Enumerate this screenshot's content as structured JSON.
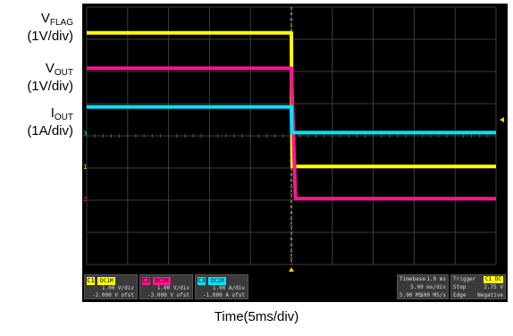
{
  "labels": [
    {
      "main": "V",
      "sub": "FLAG",
      "scale": "(1V/div)"
    },
    {
      "main": "V",
      "sub": "OUT",
      "scale": "(1V/div)"
    },
    {
      "main": "I",
      "sub": "OUT",
      "scale": "(1A/div)"
    }
  ],
  "x_axis_label": "Time(5ms/div)",
  "scope": {
    "channels": [
      {
        "num": "C1",
        "tag": "DC1M",
        "line1": "1.00 V/div",
        "line2": "-2.000 V ofst",
        "color": "#ffff00"
      },
      {
        "num": "C2",
        "tag": "DC1M",
        "line1": "1.00 V/div",
        "line2": "-3.000 V ofst",
        "color": "#ff1493"
      },
      {
        "num": "C3",
        "tag": "DC1M",
        "line1": "1.00 A/div",
        "line2": "-1.000 A ofst",
        "color": "#00e5ff"
      }
    ],
    "timebase": {
      "label": "Timebase",
      "delay": "-1.0 ms",
      "rate": "5.00 ms/div",
      "samples": "5.00 MS",
      "sample_rate": "100 MS/s"
    },
    "trigger": {
      "label": "Trigger",
      "source": "C1 DC",
      "mode": "Stop",
      "level": "2.75 V",
      "type": "Edge",
      "slope": "Negative"
    }
  },
  "chart_data": {
    "type": "line",
    "title": "",
    "xlabel": "Time(5ms/div)",
    "x_unit": "ms",
    "x_divisions": 10,
    "y_divisions": 8,
    "xlim": [
      -25,
      25
    ],
    "ylim": [
      -4,
      4
    ],
    "event_time_ms": 0,
    "series": [
      {
        "name": "VFLAG",
        "color": "#ffff00",
        "x": [
          -25,
          0,
          0.1,
          25
        ],
        "y": [
          3.2,
          3.2,
          -0.95,
          -0.95
        ]
      },
      {
        "name": "VOUT",
        "color": "#ff1493",
        "x": [
          -25,
          0,
          0.5,
          25
        ],
        "y": [
          2.1,
          2.1,
          -1.95,
          -1.95
        ]
      },
      {
        "name": "IOUT",
        "color": "#00e5ff",
        "x": [
          -25,
          0,
          0.05,
          25
        ],
        "y": [
          0.9,
          0.9,
          0.1,
          0.1
        ]
      }
    ],
    "channel_markers": [
      "1",
      "2",
      "3"
    ],
    "grid": true
  }
}
